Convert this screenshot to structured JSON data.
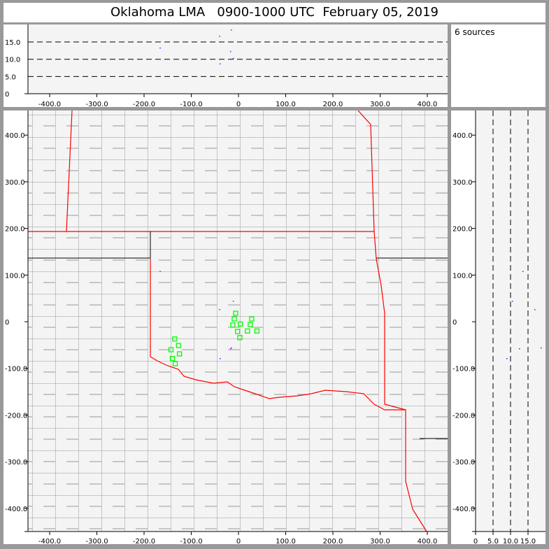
{
  "title": "Oklahoma LMA   0900-1000 UTC  February 05, 2019",
  "info": {
    "source_count": "6 sources"
  },
  "colors": {
    "background": "#f4f4f4",
    "state_border": "#ff0000",
    "county_border": "#999999",
    "station": "#00ff00",
    "source": "#8800ff"
  },
  "chart_data": [
    {
      "type": "scatter",
      "panel": "altitude vs east-west",
      "xlabel": "",
      "ylabel": "",
      "xlim": [
        -460,
        440
      ],
      "ylim": [
        0,
        20
      ],
      "xticks": [
        "-400.0",
        "-300.0",
        "-200.0",
        "-100.0",
        "0",
        "100.0",
        "200.0",
        "300.0",
        "400.0"
      ],
      "yticks": [
        "0",
        "5.0",
        "10.0",
        "15.0"
      ],
      "grid": "dashed horizontal at 5, 10, 15"
    },
    {
      "type": "scatter",
      "panel": "plan view",
      "xlim": [
        -460,
        440
      ],
      "ylim": [
        -450,
        450
      ],
      "xticks": [
        "-400.0",
        "-300.0",
        "-200.0",
        "-100.0",
        "0",
        "100.0",
        "200.0",
        "300.0",
        "400.0"
      ],
      "yticks": [
        "400.0",
        "300.0",
        "200.0",
        "100.0",
        "0",
        "-100.0",
        "-200.0",
        "-300.0",
        "-400.0"
      ],
      "stations": [
        [
          -6,
          18
        ],
        [
          -9,
          6
        ],
        [
          4,
          -5
        ],
        [
          -12,
          -7
        ],
        [
          -2,
          -21
        ],
        [
          3,
          -34
        ],
        [
          28,
          6
        ],
        [
          25,
          -6
        ],
        [
          19,
          -20
        ],
        [
          39,
          -20
        ],
        [
          -135,
          -37
        ],
        [
          -127,
          -51
        ],
        [
          -143,
          -60
        ],
        [
          -125,
          -69
        ],
        [
          -140,
          -79
        ],
        [
          -134,
          -90
        ]
      ]
    },
    {
      "type": "scatter",
      "panel": "north-south vs altitude",
      "xlim": [
        0,
        20
      ],
      "ylim": [
        -450,
        450
      ],
      "xticks": [
        "0",
        "5.0",
        "10.0",
        "15.0"
      ],
      "yticks": [
        "400.0",
        "300.0",
        "200.0",
        "100.0",
        "0",
        "-100.0",
        "-200.0",
        "-300.0",
        "-400.0"
      ],
      "grid": "dashed vertical at 5, 10, 15"
    },
    {
      "type": "scatter",
      "name": "sources",
      "x_km": [
        -167,
        -12,
        -41,
        -18,
        -16,
        -40
      ],
      "y_km": [
        109,
        45,
        27,
        -57,
        -55,
        -78
      ],
      "alt_km": [
        13.4,
        10.4,
        16.8,
        12.4,
        18.6,
        8.8
      ]
    }
  ]
}
